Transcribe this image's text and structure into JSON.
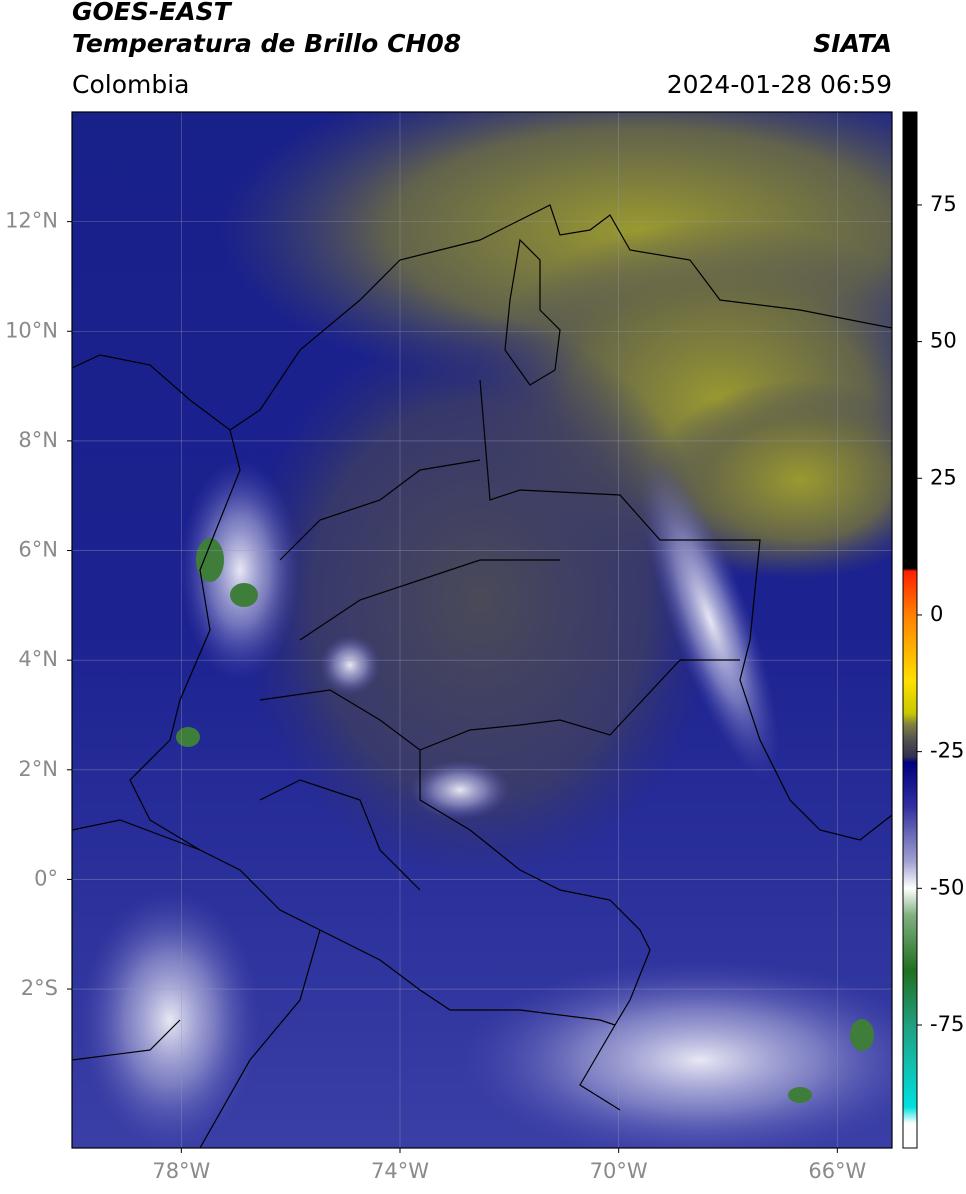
{
  "header": {
    "title_line1": "GOES-EAST",
    "title_line2": "Temperatura de Brillo CH08",
    "region": "Colombia",
    "source": "SIATA",
    "timestamp": "2024-01-28 06:59"
  },
  "map": {
    "xlim": [
      -80,
      -65
    ],
    "ylim": [
      -4.9,
      14
    ],
    "xticks": [
      {
        "value": -78,
        "label": "78°W"
      },
      {
        "value": -74,
        "label": "74°W"
      },
      {
        "value": -70,
        "label": "70°W"
      },
      {
        "value": -66,
        "label": "66°W"
      }
    ],
    "yticks": [
      {
        "value": 12,
        "label": "12°N"
      },
      {
        "value": 10,
        "label": "10°N"
      },
      {
        "value": 8,
        "label": "8°N"
      },
      {
        "value": 6,
        "label": "6°N"
      },
      {
        "value": 4,
        "label": "4°N"
      },
      {
        "value": 2,
        "label": "2°N"
      },
      {
        "value": 0,
        "label": "0°"
      },
      {
        "value": -2,
        "label": "2°S"
      }
    ],
    "grid": true
  },
  "colorbar": {
    "lim": [
      -97.5,
      92
    ],
    "ticks": [
      75,
      50,
      25,
      0,
      -25,
      -50,
      -75
    ],
    "stops": [
      {
        "value": 92,
        "color": "#000000"
      },
      {
        "value": 8.5,
        "color": "#000000"
      },
      {
        "value": 8,
        "color": "#ff2000"
      },
      {
        "value": 0,
        "color": "#ff8000"
      },
      {
        "value": -12,
        "color": "#ffe000"
      },
      {
        "value": -18,
        "color": "#c8c800"
      },
      {
        "value": -20,
        "color": "#808040"
      },
      {
        "value": -23,
        "color": "#505050"
      },
      {
        "value": -26,
        "color": "#303050"
      },
      {
        "value": -27,
        "color": "#000080"
      },
      {
        "value": -35,
        "color": "#3030a0"
      },
      {
        "value": -45,
        "color": "#a0a0d0"
      },
      {
        "value": -50,
        "color": "#ffffff"
      },
      {
        "value": -55,
        "color": "#80b080"
      },
      {
        "value": -65,
        "color": "#207020"
      },
      {
        "value": -75,
        "color": "#20a080"
      },
      {
        "value": -90,
        "color": "#00e0e0"
      },
      {
        "value": -93,
        "color": "#ffffff"
      },
      {
        "value": -97.5,
        "color": "#ffffff"
      }
    ]
  }
}
